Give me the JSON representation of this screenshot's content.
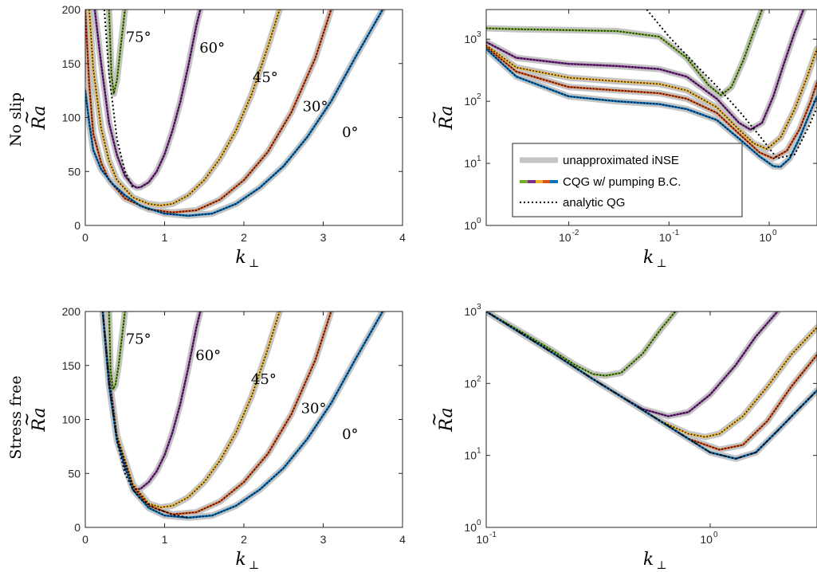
{
  "row_labels": [
    "No slip",
    "Stress free"
  ],
  "legend": {
    "entries": [
      "unapproximated iNSE",
      "CQG w/ pumping B.C.",
      "analytic QG"
    ],
    "placement": "lower-left of top-right panel"
  },
  "colors": {
    "inse": "#c4c4c4",
    "angles": {
      "0": "#0072bd",
      "30": "#d95319",
      "45": "#edb120",
      "60": "#7e2f8e",
      "75": "#77ac30"
    },
    "qg": "#000000"
  },
  "chart_data": [
    {
      "panel": "top-left",
      "type": "line",
      "xlabel": "k",
      "xlabel_sub": "⊥",
      "ylabel": "Ra",
      "row_label": "No slip",
      "xlim": [
        0,
        4
      ],
      "ylim": [
        0,
        200
      ],
      "xticks": [
        0,
        1,
        2,
        3,
        4
      ],
      "yticks": [
        0,
        50,
        100,
        150,
        200
      ],
      "annotations": [
        {
          "text": "75°",
          "x": 0.67,
          "y": 170
        },
        {
          "text": "60°",
          "x": 1.6,
          "y": 160
        },
        {
          "text": "45°",
          "x": 2.27,
          "y": 133
        },
        {
          "text": "30°",
          "x": 2.9,
          "y": 106
        },
        {
          "text": "0°",
          "x": 3.34,
          "y": 82
        }
      ],
      "series": [
        {
          "angle": "75",
          "x": [
            0.3,
            0.33,
            0.36,
            0.4,
            0.45,
            0.5
          ],
          "y": [
            200,
            140,
            122,
            135,
            168,
            200
          ]
        },
        {
          "angle": "60",
          "x": [
            0.12,
            0.2,
            0.3,
            0.4,
            0.5,
            0.6,
            0.65,
            0.7,
            0.8,
            0.9,
            1.0,
            1.1,
            1.2,
            1.3,
            1.4,
            1.45
          ],
          "y": [
            200,
            150,
            95,
            65,
            46,
            37,
            35,
            35.5,
            40,
            50,
            66,
            88,
            115,
            148,
            185,
            200
          ]
        },
        {
          "angle": "45",
          "x": [
            0.05,
            0.1,
            0.2,
            0.3,
            0.4,
            0.6,
            0.8,
            0.95,
            1.1,
            1.3,
            1.5,
            1.7,
            1.9,
            2.1,
            2.3,
            2.45
          ],
          "y": [
            200,
            145,
            90,
            60,
            42,
            26,
            20,
            18.5,
            20,
            28,
            42,
            62,
            88,
            122,
            165,
            200
          ]
        },
        {
          "angle": "30",
          "x": [
            0,
            0.05,
            0.1,
            0.2,
            0.3,
            0.5,
            0.8,
            1.1,
            1.4,
            1.7,
            2.0,
            2.3,
            2.6,
            2.9,
            3.1
          ],
          "y": [
            200,
            130,
            85,
            58,
            42,
            25,
            15,
            12,
            14,
            24,
            42,
            68,
            105,
            155,
            200
          ]
        },
        {
          "angle": "0",
          "x": [
            0,
            0.05,
            0.1,
            0.2,
            0.35,
            0.5,
            0.7,
            1.0,
            1.3,
            1.6,
            1.9,
            2.2,
            2.5,
            2.8,
            3.1,
            3.4,
            3.75
          ],
          "y": [
            125,
            95,
            70,
            52,
            38,
            28,
            18,
            11,
            9,
            11,
            20,
            35,
            55,
            82,
            115,
            155,
            200
          ]
        }
      ],
      "qg": {
        "x": [
          0.24,
          0.3,
          0.4,
          0.5,
          0.6
        ],
        "y": [
          200,
          140,
          80,
          50,
          35
        ]
      }
    },
    {
      "panel": "top-right",
      "type": "line",
      "xscale": "log",
      "yscale": "log",
      "xlabel": "k",
      "xlabel_sub": "⊥",
      "ylabel": "Ra",
      "xlim": [
        0.0015,
        3
      ],
      "ylim": [
        1,
        3000
      ],
      "xticks": [
        0.01,
        0.1,
        1
      ],
      "xticklabels": [
        "10",
        "10",
        "10"
      ],
      "xtickexps": [
        "-2",
        "-1",
        "0"
      ],
      "yticks": [
        1,
        10,
        100,
        1000
      ],
      "yticklabels": [
        "10",
        "10",
        "10",
        "10"
      ],
      "ytickexps": [
        "0",
        "1",
        "2",
        "3"
      ],
      "series": [
        {
          "angle": "75",
          "x": [
            0.0015,
            0.003,
            0.01,
            0.03,
            0.08,
            0.15,
            0.25,
            0.33,
            0.42,
            0.55,
            0.7,
            0.85
          ],
          "y": [
            1500,
            1450,
            1400,
            1350,
            1100,
            500,
            180,
            125,
            170,
            450,
            1300,
            3000
          ]
        },
        {
          "angle": "60",
          "x": [
            0.0015,
            0.003,
            0.01,
            0.03,
            0.08,
            0.15,
            0.3,
            0.5,
            0.65,
            0.85,
            1.1,
            1.4,
            1.8,
            2.2
          ],
          "y": [
            900,
            500,
            400,
            370,
            330,
            250,
            110,
            45,
            35,
            45,
            120,
            400,
            1300,
            3000
          ]
        },
        {
          "angle": "45",
          "x": [
            0.0015,
            0.003,
            0.01,
            0.03,
            0.08,
            0.15,
            0.3,
            0.5,
            0.7,
            0.95,
            1.3,
            1.8,
            2.4,
            3.0
          ],
          "y": [
            800,
            350,
            240,
            210,
            190,
            150,
            80,
            35,
            21,
            17,
            26,
            75,
            250,
            700
          ]
        },
        {
          "angle": "30",
          "x": [
            0.0015,
            0.003,
            0.01,
            0.03,
            0.08,
            0.15,
            0.3,
            0.5,
            0.8,
            1.1,
            1.5,
            2.0,
            2.6,
            3.0
          ],
          "y": [
            750,
            300,
            170,
            150,
            135,
            110,
            65,
            30,
            15,
            12,
            16,
            35,
            100,
            200
          ]
        },
        {
          "angle": "0",
          "x": [
            0.0015,
            0.003,
            0.01,
            0.03,
            0.08,
            0.15,
            0.3,
            0.5,
            0.8,
            1.1,
            1.3,
            1.6,
            2.0,
            2.5,
            3.0
          ],
          "y": [
            700,
            250,
            120,
            100,
            90,
            75,
            50,
            25,
            13,
            9,
            8.8,
            12,
            25,
            60,
            120
          ]
        }
      ],
      "qg": {
        "x": [
          0.06,
          0.1,
          0.2,
          0.3,
          0.5,
          0.8,
          1.2,
          1.8,
          2.5,
          3.0
        ],
        "y": [
          3000,
          1100,
          340,
          175,
          70,
          28,
          12,
          14,
          40,
          80
        ]
      }
    },
    {
      "panel": "bottom-left",
      "type": "line",
      "xlabel": "k",
      "xlabel_sub": "⊥",
      "ylabel": "Ra",
      "row_label": "Stress free",
      "xlim": [
        0,
        4
      ],
      "ylim": [
        0,
        200
      ],
      "xticks": [
        0,
        1,
        2,
        3,
        4
      ],
      "yticks": [
        0,
        50,
        100,
        150,
        200
      ],
      "annotations": [
        {
          "text": "75°",
          "x": 0.67,
          "y": 170
        },
        {
          "text": "60°",
          "x": 1.55,
          "y": 155
        },
        {
          "text": "45°",
          "x": 2.25,
          "y": 133
        },
        {
          "text": "30°",
          "x": 2.88,
          "y": 106
        },
        {
          "text": "0°",
          "x": 3.34,
          "y": 82
        }
      ],
      "series": [
        {
          "angle": "75",
          "x": [
            0.3,
            0.32,
            0.35,
            0.38,
            0.42,
            0.46,
            0.5
          ],
          "y": [
            200,
            145,
            128,
            132,
            150,
            175,
            200
          ]
        },
        {
          "angle": "60",
          "x": [
            0.22,
            0.3,
            0.4,
            0.5,
            0.6,
            0.65,
            0.7,
            0.8,
            0.9,
            1.0,
            1.1,
            1.2,
            1.3,
            1.4,
            1.45
          ],
          "y": [
            200,
            140,
            85,
            55,
            38,
            35,
            36,
            42,
            52,
            67,
            88,
            115,
            148,
            185,
            200
          ]
        },
        {
          "angle": "45",
          "x": [
            0.22,
            0.3,
            0.4,
            0.6,
            0.8,
            0.95,
            1.1,
            1.3,
            1.5,
            1.7,
            1.9,
            2.1,
            2.3,
            2.45
          ],
          "y": [
            200,
            135,
            85,
            40,
            22,
            18.5,
            20,
            28,
            42,
            62,
            88,
            122,
            165,
            200
          ]
        },
        {
          "angle": "30",
          "x": [
            0.22,
            0.3,
            0.4,
            0.6,
            0.8,
            1.1,
            1.4,
            1.7,
            2.0,
            2.3,
            2.6,
            2.9,
            3.1
          ],
          "y": [
            200,
            133,
            82,
            38,
            20,
            12,
            14,
            24,
            42,
            68,
            105,
            155,
            200
          ]
        },
        {
          "angle": "0",
          "x": [
            0.22,
            0.3,
            0.4,
            0.6,
            0.8,
            1.0,
            1.3,
            1.6,
            1.9,
            2.2,
            2.5,
            2.8,
            3.1,
            3.4,
            3.75
          ],
          "y": [
            200,
            132,
            80,
            35,
            18,
            11,
            9,
            11,
            20,
            35,
            55,
            82,
            115,
            155,
            200
          ]
        }
      ],
      "qg": {
        "x": [
          0.22,
          0.3,
          0.4,
          0.5,
          0.6,
          0.7,
          0.9,
          1.1,
          1.3
        ],
        "y": [
          200,
          133,
          80,
          50,
          35,
          26,
          17,
          12,
          9
        ]
      }
    },
    {
      "panel": "bottom-right",
      "type": "line",
      "xscale": "log",
      "yscale": "log",
      "xlabel": "k",
      "xlabel_sub": "⊥",
      "ylabel": "Ra",
      "xlim": [
        0.1,
        3
      ],
      "ylim": [
        1,
        1000
      ],
      "xticks": [
        0.1,
        1
      ],
      "xticklabels": [
        "10",
        "10"
      ],
      "xtickexps": [
        "-1",
        "0"
      ],
      "yticks": [
        1,
        10,
        100,
        1000
      ],
      "yticklabels": [
        "10",
        "10",
        "10",
        "10"
      ],
      "ytickexps": [
        "0",
        "1",
        "2",
        "3"
      ],
      "series": [
        {
          "angle": "75",
          "x": [
            0.1,
            0.15,
            0.2,
            0.25,
            0.3,
            0.34,
            0.4,
            0.5,
            0.6,
            0.7
          ],
          "y": [
            1000,
            480,
            280,
            180,
            135,
            128,
            140,
            260,
            560,
            1000
          ]
        },
        {
          "angle": "60",
          "x": [
            0.1,
            0.2,
            0.3,
            0.4,
            0.5,
            0.65,
            0.8,
            1.0,
            1.3,
            1.6,
            2.0
          ],
          "y": [
            1000,
            260,
            115,
            66,
            44,
            35,
            40,
            70,
            180,
            450,
            1000
          ]
        },
        {
          "angle": "45",
          "x": [
            0.1,
            0.2,
            0.3,
            0.4,
            0.6,
            0.8,
            0.95,
            1.1,
            1.4,
            1.8,
            2.3,
            3.0
          ],
          "y": [
            1000,
            260,
            115,
            66,
            30,
            20,
            18,
            20,
            35,
            90,
            250,
            600
          ]
        },
        {
          "angle": "30",
          "x": [
            0.1,
            0.2,
            0.3,
            0.4,
            0.6,
            0.8,
            1.1,
            1.4,
            1.8,
            2.3,
            3.0
          ],
          "y": [
            1000,
            260,
            115,
            66,
            30,
            17,
            12,
            14,
            30,
            90,
            250
          ]
        },
        {
          "angle": "0",
          "x": [
            0.1,
            0.2,
            0.3,
            0.4,
            0.6,
            0.8,
            1.0,
            1.3,
            1.6,
            2.0,
            2.5,
            3.0
          ],
          "y": [
            1000,
            260,
            115,
            66,
            30,
            17,
            11,
            9,
            11,
            22,
            45,
            80
          ]
        }
      ],
      "qg": {
        "x": [
          0.1,
          0.2,
          0.3,
          0.4,
          0.6,
          0.8,
          1.0,
          1.3,
          1.6,
          2.0,
          2.5,
          3.0
        ],
        "y": [
          1000,
          260,
          115,
          66,
          30,
          17,
          11,
          9,
          11,
          22,
          45,
          80
        ]
      }
    }
  ]
}
